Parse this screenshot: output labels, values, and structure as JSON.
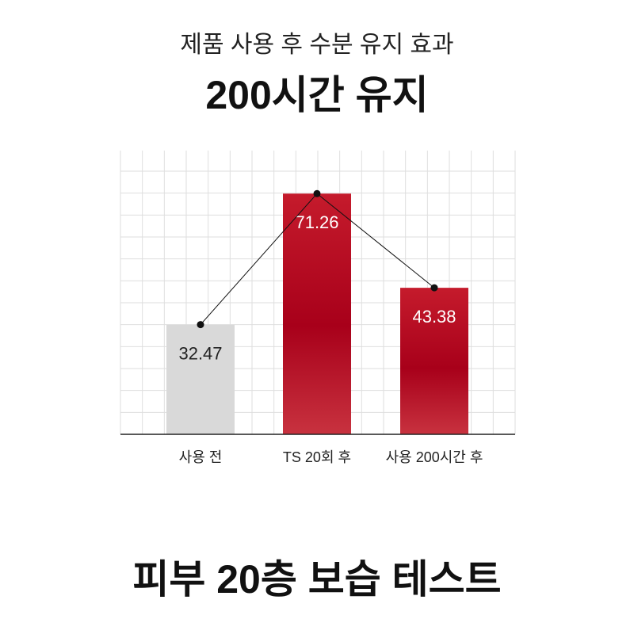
{
  "chart_data": {
    "type": "bar",
    "subtitle": "제품 사용 후 수분 유지 효과",
    "title": "200시간 유지",
    "footer": "피부 20층 보습 테스트",
    "categories": [
      "사용 전",
      "TS 20회 후",
      "사용 200시간 후"
    ],
    "values": [
      32.47,
      71.26,
      43.38
    ],
    "colors": [
      "#d9d9d9",
      "#b3001b",
      "#b3001b"
    ],
    "ylim": [
      0,
      84
    ],
    "grid": true,
    "connect_line": true
  }
}
